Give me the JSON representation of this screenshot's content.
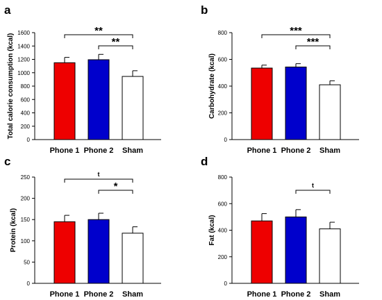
{
  "chart_data": [
    {
      "panel": "a",
      "type": "bar",
      "ylabel": "Total calorie consumption (kcal)",
      "categories": [
        "Phone 1",
        "Phone 2",
        "Sham"
      ],
      "values": [
        1150,
        1195,
        945
      ],
      "errors": [
        80,
        80,
        85
      ],
      "colors": [
        "#ee0000",
        "#0000cc",
        "#ffffff"
      ],
      "ylim": [
        0,
        1600
      ],
      "yticks": [
        0,
        200,
        400,
        600,
        800,
        1000,
        1200,
        1400,
        1600
      ],
      "significance": [
        {
          "from": 0,
          "to": 2,
          "label": "**"
        },
        {
          "from": 1,
          "to": 2,
          "label": "**"
        }
      ]
    },
    {
      "panel": "b",
      "type": "bar",
      "ylabel": "Carbohydrate (kcal)",
      "categories": [
        "Phone 1",
        "Phone 2",
        "Sham"
      ],
      "values": [
        535,
        543,
        410
      ],
      "errors": [
        22,
        25,
        30
      ],
      "colors": [
        "#ee0000",
        "#0000cc",
        "#ffffff"
      ],
      "ylim": [
        0,
        800
      ],
      "yticks": [
        0,
        200,
        400,
        600,
        800
      ],
      "significance": [
        {
          "from": 0,
          "to": 2,
          "label": "***"
        },
        {
          "from": 1,
          "to": 2,
          "label": "***"
        }
      ]
    },
    {
      "panel": "c",
      "type": "bar",
      "ylabel": "Protein (kcal)",
      "categories": [
        "Phone 1",
        "Phone 2",
        "Sham"
      ],
      "values": [
        145,
        150,
        118
      ],
      "errors": [
        15,
        15,
        15
      ],
      "colors": [
        "#ee0000",
        "#0000cc",
        "#ffffff"
      ],
      "ylim": [
        0,
        250
      ],
      "yticks": [
        0,
        50,
        100,
        150,
        200,
        250
      ],
      "significance": [
        {
          "from": 0,
          "to": 2,
          "label": "t"
        },
        {
          "from": 1,
          "to": 2,
          "label": "*"
        }
      ]
    },
    {
      "panel": "d",
      "type": "bar",
      "ylabel": "Fat (kcal)",
      "categories": [
        "Phone 1",
        "Phone 2",
        "Sham"
      ],
      "values": [
        470,
        500,
        410
      ],
      "errors": [
        55,
        55,
        50
      ],
      "colors": [
        "#ee0000",
        "#0000cc",
        "#ffffff"
      ],
      "ylim": [
        0,
        800
      ],
      "yticks": [
        0,
        200,
        400,
        600,
        800
      ],
      "significance": [
        {
          "from": 1,
          "to": 2,
          "label": "t"
        }
      ]
    }
  ]
}
